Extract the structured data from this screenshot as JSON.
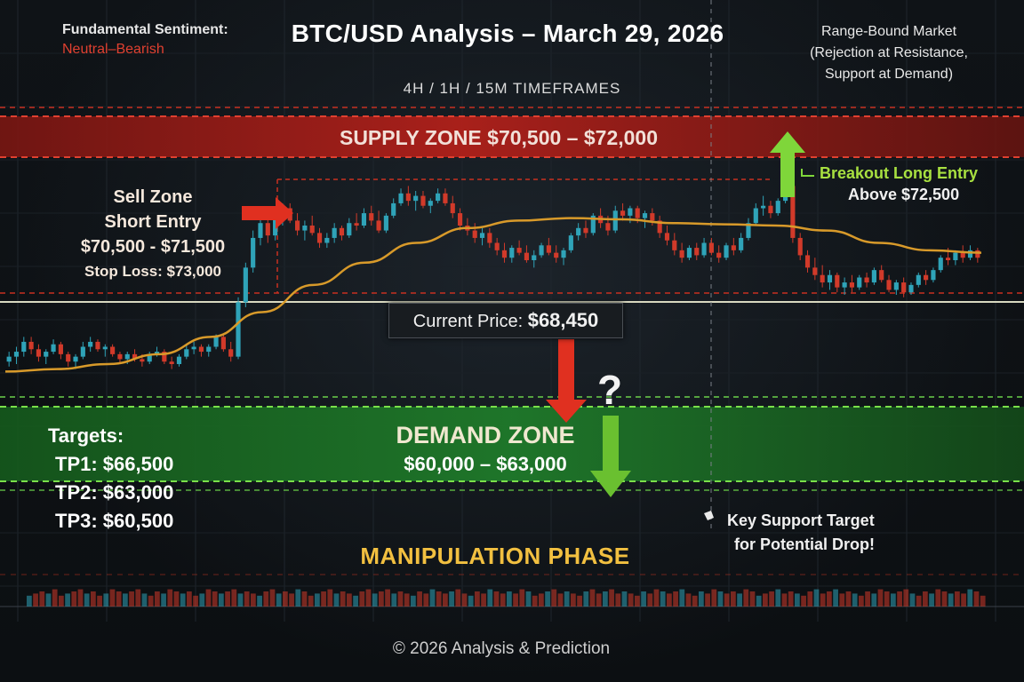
{
  "header": {
    "sentiment_label": "Fundamental Sentiment:",
    "sentiment_value": "Neutral–Bearish",
    "title": "BTC/USD Analysis – March 29, 2026",
    "timeframes": "4H / 1H / 15M TIMEFRAMES",
    "market_state": [
      "Range-Bound Market",
      "(Rejection at Resistance,",
      "Support at Demand)"
    ]
  },
  "zones": {
    "supply": "SUPPLY ZONE $70,500 – $72,000",
    "demand_title": "DEMAND ZONE",
    "demand_range": "$60,000 – $63,000"
  },
  "sell_setup": {
    "line1": "Sell Zone",
    "line2": "Short Entry",
    "line3": "$70,500 - $71,500",
    "stop_loss": "Stop Loss: $73,000"
  },
  "breakout": {
    "title": "Breakout Long Entry",
    "subtitle": "Above $72,500"
  },
  "current_price": {
    "label": "Current Price:",
    "value": "$68,450"
  },
  "question_mark": "?",
  "targets": {
    "title": "Targets:",
    "items": [
      "TP1: $66,500",
      "TP2: $63,000",
      "TP3: $60,500"
    ]
  },
  "key_support": [
    "Key Support Target",
    "for Potential Drop!"
  ],
  "phase_label": "MANIPULATION PHASE",
  "footer": "© 2026 Analysis & Prediction",
  "colors": {
    "bull": "#2fa3b8",
    "bear": "#d13a2a",
    "moving_average": "#d89a2a",
    "supply_zone": "#b0201a",
    "demand_zone": "#1f7a2a",
    "breakout_arrow": "#7fd63a",
    "phase_gold": "#f2c040"
  },
  "chart_data": {
    "type": "candlestick",
    "series": [
      {
        "name": "price",
        "values": [
          [
            64.6,
            65.0,
            64.4,
            64.8
          ],
          [
            64.8,
            65.2,
            64.5,
            65.0
          ],
          [
            65.0,
            65.6,
            64.8,
            65.4
          ],
          [
            65.4,
            65.6,
            64.9,
            65.1
          ],
          [
            65.1,
            65.3,
            64.6,
            64.8
          ],
          [
            64.8,
            65.1,
            64.5,
            65.0
          ],
          [
            65.0,
            65.5,
            64.9,
            65.3
          ],
          [
            65.3,
            65.4,
            64.7,
            64.9
          ],
          [
            64.9,
            65.0,
            64.4,
            64.6
          ],
          [
            64.6,
            64.9,
            64.3,
            64.8
          ],
          [
            64.8,
            65.4,
            64.7,
            65.2
          ],
          [
            65.2,
            65.6,
            65.0,
            65.4
          ],
          [
            65.4,
            65.5,
            65.0,
            65.1
          ],
          [
            65.1,
            65.3,
            64.8,
            65.2
          ],
          [
            65.2,
            65.3,
            64.8,
            64.9
          ],
          [
            64.9,
            65.0,
            64.5,
            64.7
          ],
          [
            64.7,
            65.0,
            64.5,
            64.9
          ],
          [
            64.9,
            65.1,
            64.6,
            64.7
          ],
          [
            64.7,
            64.9,
            64.4,
            64.6
          ],
          [
            64.6,
            65.0,
            64.5,
            64.9
          ],
          [
            64.9,
            65.2,
            64.8,
            65.0
          ],
          [
            65.0,
            65.1,
            64.5,
            64.6
          ],
          [
            64.6,
            64.8,
            64.3,
            64.5
          ],
          [
            64.5,
            64.9,
            64.4,
            64.8
          ],
          [
            64.8,
            65.3,
            64.7,
            65.1
          ],
          [
            65.1,
            65.4,
            64.9,
            65.2
          ],
          [
            65.2,
            65.3,
            64.8,
            65.0
          ],
          [
            65.0,
            65.3,
            64.8,
            65.2
          ],
          [
            65.2,
            65.7,
            65.1,
            65.6
          ],
          [
            65.6,
            65.7,
            65.0,
            65.1
          ],
          [
            65.1,
            65.4,
            64.6,
            64.8
          ],
          [
            64.8,
            67.2,
            64.7,
            67.0
          ],
          [
            67.0,
            68.6,
            66.8,
            68.4
          ],
          [
            68.4,
            69.9,
            68.2,
            69.6
          ],
          [
            69.6,
            70.4,
            69.3,
            70.2
          ],
          [
            70.2,
            70.5,
            69.4,
            69.7
          ],
          [
            69.7,
            70.6,
            69.5,
            70.4
          ],
          [
            70.4,
            71.0,
            70.1,
            70.8
          ],
          [
            70.8,
            71.0,
            70.2,
            70.3
          ],
          [
            70.3,
            70.6,
            69.7,
            69.9
          ],
          [
            69.9,
            70.3,
            69.5,
            70.1
          ],
          [
            70.1,
            70.5,
            69.7,
            69.8
          ],
          [
            69.8,
            70.0,
            69.2,
            69.4
          ],
          [
            69.4,
            69.8,
            69.2,
            69.6
          ],
          [
            69.6,
            70.2,
            69.4,
            70.0
          ],
          [
            70.0,
            70.1,
            69.5,
            69.7
          ],
          [
            69.7,
            70.4,
            69.6,
            70.2
          ],
          [
            70.2,
            70.6,
            69.9,
            70.1
          ],
          [
            70.1,
            70.8,
            70.0,
            70.6
          ],
          [
            70.6,
            70.9,
            70.1,
            70.3
          ],
          [
            70.3,
            70.7,
            69.8,
            69.9
          ],
          [
            69.9,
            70.6,
            69.8,
            70.5
          ],
          [
            70.5,
            71.2,
            70.4,
            71.0
          ],
          [
            71.0,
            71.6,
            70.9,
            71.4
          ],
          [
            71.4,
            71.7,
            70.9,
            71.1
          ],
          [
            71.1,
            71.5,
            70.7,
            71.3
          ],
          [
            71.3,
            71.5,
            70.8,
            70.9
          ],
          [
            70.9,
            71.2,
            70.6,
            71.1
          ],
          [
            71.1,
            71.6,
            71.0,
            71.4
          ],
          [
            71.4,
            71.6,
            70.9,
            71.0
          ],
          [
            71.0,
            71.3,
            70.4,
            70.6
          ],
          [
            70.6,
            70.8,
            69.9,
            70.1
          ],
          [
            70.1,
            70.4,
            69.7,
            69.9
          ],
          [
            69.9,
            70.2,
            69.4,
            69.6
          ],
          [
            69.6,
            70.0,
            69.3,
            69.8
          ],
          [
            69.8,
            70.0,
            69.2,
            69.4
          ],
          [
            69.4,
            69.6,
            68.9,
            69.1
          ],
          [
            69.1,
            69.4,
            68.6,
            68.8
          ],
          [
            68.8,
            69.3,
            68.6,
            69.2
          ],
          [
            69.2,
            69.5,
            68.9,
            69.0
          ],
          [
            69.0,
            69.3,
            68.6,
            68.7
          ],
          [
            68.7,
            69.1,
            68.4,
            68.9
          ],
          [
            68.9,
            69.4,
            68.8,
            69.3
          ],
          [
            69.3,
            69.6,
            68.9,
            69.0
          ],
          [
            69.0,
            69.3,
            68.6,
            68.8
          ],
          [
            68.8,
            69.2,
            68.5,
            69.1
          ],
          [
            69.1,
            69.8,
            69.0,
            69.7
          ],
          [
            69.7,
            70.2,
            69.5,
            70.0
          ],
          [
            70.0,
            70.3,
            69.6,
            69.8
          ],
          [
            69.8,
            70.6,
            69.7,
            70.5
          ],
          [
            70.5,
            70.8,
            70.0,
            70.2
          ],
          [
            70.2,
            70.5,
            69.7,
            69.9
          ],
          [
            69.9,
            70.9,
            69.8,
            70.7
          ],
          [
            70.7,
            71.0,
            70.3,
            70.5
          ],
          [
            70.5,
            70.9,
            70.2,
            70.8
          ],
          [
            70.8,
            70.9,
            70.2,
            70.4
          ],
          [
            70.4,
            70.7,
            70.0,
            70.6
          ],
          [
            70.6,
            70.8,
            70.1,
            70.3
          ],
          [
            70.3,
            70.5,
            69.6,
            69.8
          ],
          [
            69.8,
            70.1,
            69.3,
            69.5
          ],
          [
            69.5,
            69.8,
            68.9,
            69.1
          ],
          [
            69.1,
            69.4,
            68.6,
            68.8
          ],
          [
            68.8,
            69.3,
            68.7,
            69.2
          ],
          [
            69.2,
            69.4,
            68.7,
            68.9
          ],
          [
            68.9,
            69.6,
            68.8,
            69.4
          ],
          [
            69.4,
            69.6,
            68.9,
            69.0
          ],
          [
            69.0,
            69.3,
            68.6,
            68.8
          ],
          [
            68.8,
            69.4,
            68.7,
            69.3
          ],
          [
            69.3,
            69.6,
            68.9,
            69.1
          ],
          [
            69.1,
            69.8,
            69.0,
            69.6
          ],
          [
            69.6,
            70.4,
            69.5,
            70.2
          ],
          [
            70.2,
            71.0,
            70.1,
            70.8
          ],
          [
            70.8,
            71.3,
            70.5,
            70.9
          ],
          [
            70.9,
            71.1,
            70.4,
            70.6
          ],
          [
            70.6,
            71.2,
            70.5,
            71.1
          ],
          [
            71.1,
            71.9,
            71.0,
            71.7
          ],
          [
            71.7,
            71.8,
            69.4,
            69.6
          ],
          [
            69.6,
            69.8,
            68.7,
            68.9
          ],
          [
            68.9,
            69.1,
            68.2,
            68.4
          ],
          [
            68.4,
            68.8,
            67.9,
            68.1
          ],
          [
            68.1,
            68.5,
            67.6,
            67.8
          ],
          [
            67.8,
            68.3,
            67.5,
            68.1
          ],
          [
            68.1,
            68.2,
            67.4,
            67.6
          ],
          [
            67.6,
            68.0,
            67.3,
            67.8
          ],
          [
            67.8,
            68.1,
            67.4,
            67.6
          ],
          [
            67.6,
            68.1,
            67.5,
            68.0
          ],
          [
            68.0,
            68.2,
            67.6,
            67.8
          ],
          [
            67.8,
            68.4,
            67.7,
            68.3
          ],
          [
            68.3,
            68.5,
            67.8,
            67.9
          ],
          [
            67.9,
            68.1,
            67.4,
            67.5
          ],
          [
            67.5,
            67.9,
            67.3,
            67.8
          ],
          [
            67.8,
            68.0,
            67.2,
            67.4
          ],
          [
            67.4,
            67.8,
            67.3,
            67.7
          ],
          [
            67.7,
            68.2,
            67.6,
            68.1
          ],
          [
            68.1,
            68.3,
            67.7,
            67.9
          ],
          [
            67.9,
            68.4,
            67.8,
            68.3
          ],
          [
            68.3,
            68.9,
            68.2,
            68.8
          ],
          [
            68.8,
            69.2,
            68.5,
            68.7
          ],
          [
            68.7,
            69.1,
            68.5,
            69.0
          ],
          [
            69.0,
            69.3,
            68.6,
            68.8
          ],
          [
            68.8,
            69.3,
            68.7,
            69.1
          ],
          [
            69.1,
            69.2,
            68.6,
            68.8
          ]
        ]
      }
    ],
    "moving_average": [
      64.2,
      64.3,
      64.5,
      64.9,
      65.6,
      66.6,
      67.7,
      68.6,
      69.4,
      70.0,
      70.3,
      70.4,
      70.35,
      70.2,
      70.15,
      70.1,
      69.9,
      69.4,
      69.1,
      69.0
    ],
    "levels": {
      "supply_zone": [
        70.5,
        72.0
      ],
      "demand_zone": [
        60.0,
        63.0
      ],
      "current_price": 68.45,
      "stop_loss": 73.0,
      "breakout_entry": 72.5
    },
    "y_unit": "$ thousands",
    "ylim": [
      58.5,
      74.0
    ],
    "volume": [
      3,
      4,
      5,
      4,
      6,
      3,
      4,
      5,
      6,
      4,
      5,
      3,
      4,
      6,
      5,
      4,
      5,
      6,
      4,
      3,
      5,
      4,
      6,
      5,
      4,
      5,
      3,
      4,
      6,
      5,
      4,
      5,
      6,
      4,
      5,
      4,
      3,
      5,
      6,
      4,
      5,
      4,
      6,
      5,
      3,
      4,
      5,
      6,
      4,
      5,
      4,
      3,
      5,
      6,
      4,
      5,
      6,
      4,
      5,
      4,
      3,
      5,
      4,
      6,
      5,
      4,
      5,
      6,
      4,
      3,
      5,
      4,
      6,
      5,
      4,
      5,
      4,
      6,
      5,
      3,
      4,
      5,
      6,
      4,
      5,
      4,
      3,
      5,
      6,
      4,
      5,
      6,
      4,
      5,
      4,
      3,
      5,
      4,
      6,
      5,
      4,
      5,
      6,
      4,
      3,
      5,
      4,
      6,
      5,
      4,
      5,
      4,
      6,
      5,
      3,
      4,
      5,
      6,
      4,
      5,
      4,
      3,
      5,
      6,
      4,
      5,
      6,
      4,
      5,
      4,
      3,
      5,
      4,
      6,
      5,
      4,
      5,
      6,
      4,
      3,
      5,
      4,
      6,
      5,
      4,
      5,
      4,
      6,
      5,
      3
    ]
  }
}
